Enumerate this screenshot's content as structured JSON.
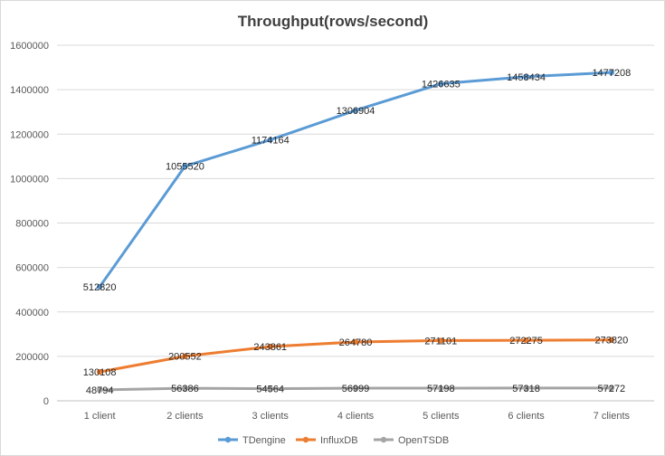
{
  "chart_data": {
    "type": "line",
    "title": "Throughput(rows/second)",
    "xlabel": "",
    "ylabel": "",
    "categories": [
      "1 client",
      "2 clients",
      "3 clients",
      "4 clients",
      "5 clients",
      "6 clients",
      "7 clients"
    ],
    "ylim": [
      0,
      1600000
    ],
    "yticks": [
      0,
      200000,
      400000,
      600000,
      800000,
      1000000,
      1200000,
      1400000,
      1600000
    ],
    "grid": true,
    "legend_position": "bottom",
    "series": [
      {
        "name": "TDengine",
        "color": "#5b9bd5",
        "values": [
          512820,
          1055520,
          1174164,
          1306904,
          1426635,
          1458434,
          1477208
        ]
      },
      {
        "name": "InfluxDB",
        "color": "#ed7d31",
        "values": [
          130108,
          200552,
          243861,
          264780,
          271101,
          272275,
          273820
        ]
      },
      {
        "name": "OpenTSDB",
        "color": "#a5a5a5",
        "values": [
          48794,
          56386,
          54564,
          56999,
          57198,
          57318,
          57272
        ]
      }
    ]
  }
}
